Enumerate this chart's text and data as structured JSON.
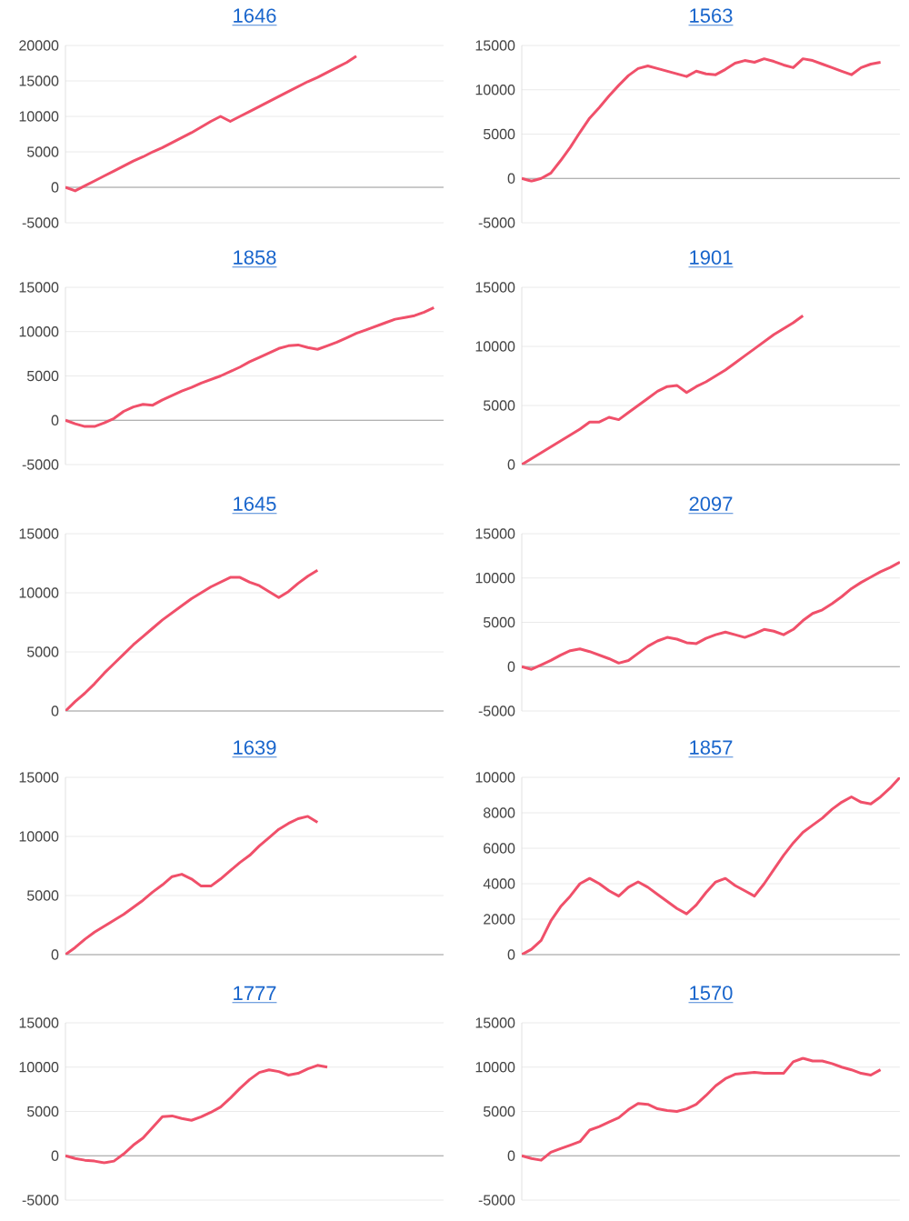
{
  "chart_data": [
    {
      "type": "line",
      "title": "1646",
      "categories": [
        null,
        null,
        null,
        null,
        null,
        null,
        null,
        null,
        null,
        null,
        null,
        null,
        null,
        null,
        null,
        null,
        null,
        null,
        null,
        null,
        null,
        null,
        null,
        null,
        null,
        null,
        null,
        null,
        null,
        null,
        null,
        null,
        null,
        null,
        null,
        null,
        null,
        null,
        null,
        null
      ],
      "grid": "y",
      "line_style": "solid",
      "ylim": [
        -5000,
        20000
      ],
      "yticks": [
        -5000,
        0,
        5000,
        10000,
        15000,
        20000
      ],
      "series": [
        {
          "color": "#f0506a",
          "values": [
            0,
            -500,
            200,
            900,
            1600,
            2300,
            3000,
            3700,
            4300,
            5000,
            5600,
            6300,
            7000,
            7700,
            8500,
            9300,
            10000,
            9300,
            10000,
            10700,
            11400,
            12100,
            12800,
            13500,
            14200,
            14900,
            15500,
            16200,
            16900,
            17600,
            18500,
            null,
            null,
            null,
            null,
            null,
            null,
            null,
            null,
            null
          ]
        }
      ]
    },
    {
      "type": "line",
      "title": "1563",
      "categories": [
        null,
        null,
        null,
        null,
        null,
        null,
        null,
        null,
        null,
        null,
        null,
        null,
        null,
        null,
        null,
        null,
        null,
        null,
        null,
        null,
        null,
        null,
        null,
        null,
        null,
        null,
        null,
        null,
        null,
        null,
        null,
        null,
        null,
        null,
        null,
        null,
        null,
        null,
        null,
        null
      ],
      "grid": "y",
      "line_style": "solid",
      "ylim": [
        -5000,
        15000
      ],
      "yticks": [
        -5000,
        0,
        5000,
        10000,
        15000
      ],
      "series": [
        {
          "color": "#f0506a",
          "values": [
            0,
            -300,
            0,
            600,
            2000,
            3500,
            5200,
            6800,
            8000,
            9300,
            10500,
            11600,
            12400,
            12700,
            12400,
            12100,
            11800,
            11500,
            12100,
            11800,
            11700,
            12300,
            13000,
            13300,
            13100,
            13500,
            13200,
            12800,
            12500,
            13500,
            13300,
            12900,
            12500,
            12100,
            11700,
            12500,
            12900,
            13100,
            null,
            null
          ]
        }
      ]
    },
    {
      "type": "line",
      "title": "1858",
      "categories": [
        null,
        null,
        null,
        null,
        null,
        null,
        null,
        null,
        null,
        null,
        null,
        null,
        null,
        null,
        null,
        null,
        null,
        null,
        null,
        null,
        null,
        null,
        null,
        null,
        null,
        null,
        null,
        null,
        null,
        null,
        null,
        null,
        null,
        null,
        null,
        null,
        null,
        null,
        null,
        null
      ],
      "grid": "y",
      "line_style": "solid",
      "ylim": [
        -5000,
        15000
      ],
      "yticks": [
        -5000,
        0,
        5000,
        10000,
        15000
      ],
      "series": [
        {
          "color": "#f0506a",
          "values": [
            0,
            -400,
            -700,
            -700,
            -300,
            200,
            1000,
            1500,
            1800,
            1700,
            2300,
            2800,
            3300,
            3700,
            4200,
            4600,
            5000,
            5500,
            6000,
            6600,
            7100,
            7600,
            8100,
            8400,
            8500,
            8200,
            8000,
            8400,
            8800,
            9300,
            9800,
            10200,
            10600,
            11000,
            11400,
            11600,
            11800,
            12200,
            12700,
            null
          ]
        }
      ]
    },
    {
      "type": "line",
      "title": "1901",
      "categories": [
        null,
        null,
        null,
        null,
        null,
        null,
        null,
        null,
        null,
        null,
        null,
        null,
        null,
        null,
        null,
        null,
        null,
        null,
        null,
        null,
        null,
        null,
        null,
        null,
        null,
        null,
        null,
        null,
        null,
        null,
        null,
        null,
        null,
        null,
        null,
        null,
        null,
        null,
        null,
        null
      ],
      "grid": "y",
      "line_style": "solid",
      "ylim": [
        0,
        15000
      ],
      "yticks": [
        0,
        5000,
        10000,
        15000
      ],
      "series": [
        {
          "color": "#f0506a",
          "values": [
            0,
            500,
            1000,
            1500,
            2000,
            2500,
            3000,
            3600,
            3600,
            4000,
            3800,
            4400,
            5000,
            5600,
            6200,
            6600,
            6700,
            6100,
            6600,
            7000,
            7500,
            8000,
            8600,
            9200,
            9800,
            10400,
            11000,
            11500,
            12000,
            12600,
            null,
            null,
            null,
            null,
            null,
            null,
            null,
            null,
            null,
            null
          ]
        }
      ]
    },
    {
      "type": "line",
      "title": "1645",
      "categories": [
        null,
        null,
        null,
        null,
        null,
        null,
        null,
        null,
        null,
        null,
        null,
        null,
        null,
        null,
        null,
        null,
        null,
        null,
        null,
        null,
        null,
        null,
        null,
        null,
        null,
        null,
        null,
        null,
        null,
        null,
        null,
        null,
        null,
        null,
        null,
        null,
        null,
        null,
        null,
        null
      ],
      "grid": "y",
      "line_style": "solid",
      "ylim": [
        0,
        15000
      ],
      "yticks": [
        0,
        5000,
        10000,
        15000
      ],
      "series": [
        {
          "color": "#f0506a",
          "values": [
            0,
            800,
            1500,
            2300,
            3200,
            4000,
            4800,
            5600,
            6300,
            7000,
            7700,
            8300,
            8900,
            9500,
            10000,
            10500,
            10900,
            11300,
            11300,
            10900,
            10600,
            10100,
            9600,
            10100,
            10800,
            11400,
            11900,
            null,
            null,
            null,
            null,
            null,
            null,
            null,
            null,
            null,
            null,
            null,
            null,
            null
          ]
        }
      ]
    },
    {
      "type": "line",
      "title": "2097",
      "categories": [
        null,
        null,
        null,
        null,
        null,
        null,
        null,
        null,
        null,
        null,
        null,
        null,
        null,
        null,
        null,
        null,
        null,
        null,
        null,
        null,
        null,
        null,
        null,
        null,
        null,
        null,
        null,
        null,
        null,
        null,
        null,
        null,
        null,
        null,
        null,
        null,
        null,
        null,
        null,
        null
      ],
      "grid": "y",
      "line_style": "solid",
      "ylim": [
        -5000,
        15000
      ],
      "yticks": [
        -5000,
        0,
        5000,
        10000,
        15000
      ],
      "series": [
        {
          "color": "#f0506a",
          "values": [
            0,
            -300,
            200,
            700,
            1300,
            1800,
            2000,
            1700,
            1300,
            900,
            400,
            700,
            1500,
            2300,
            2900,
            3300,
            3100,
            2700,
            2600,
            3200,
            3600,
            3900,
            3600,
            3300,
            3700,
            4200,
            4000,
            3600,
            4200,
            5200,
            6000,
            6400,
            7100,
            7900,
            8800,
            9500,
            10100,
            10700,
            11200,
            11800
          ]
        }
      ]
    },
    {
      "type": "line",
      "title": "1639",
      "categories": [
        null,
        null,
        null,
        null,
        null,
        null,
        null,
        null,
        null,
        null,
        null,
        null,
        null,
        null,
        null,
        null,
        null,
        null,
        null,
        null,
        null,
        null,
        null,
        null,
        null,
        null,
        null,
        null,
        null,
        null,
        null,
        null,
        null,
        null,
        null,
        null,
        null,
        null,
        null,
        null
      ],
      "grid": "y",
      "line_style": "solid",
      "ylim": [
        0,
        15000
      ],
      "yticks": [
        0,
        5000,
        10000,
        15000
      ],
      "series": [
        {
          "color": "#f0506a",
          "values": [
            0,
            600,
            1300,
            1900,
            2400,
            2900,
            3400,
            4000,
            4600,
            5300,
            5900,
            6600,
            6800,
            6400,
            5800,
            5800,
            6400,
            7100,
            7800,
            8400,
            9200,
            9900,
            10600,
            11100,
            11500,
            11700,
            11200,
            null,
            null,
            null,
            null,
            null,
            null,
            null,
            null,
            null,
            null,
            null,
            null,
            null
          ]
        }
      ]
    },
    {
      "type": "line",
      "title": "1857",
      "categories": [
        null,
        null,
        null,
        null,
        null,
        null,
        null,
        null,
        null,
        null,
        null,
        null,
        null,
        null,
        null,
        null,
        null,
        null,
        null,
        null,
        null,
        null,
        null,
        null,
        null,
        null,
        null,
        null,
        null,
        null,
        null,
        null,
        null,
        null,
        null,
        null,
        null,
        null,
        null,
        null
      ],
      "grid": "y",
      "line_style": "solid",
      "ylim": [
        0,
        10000
      ],
      "yticks": [
        0,
        2000,
        4000,
        6000,
        8000,
        10000
      ],
      "series": [
        {
          "color": "#f0506a",
          "values": [
            0,
            300,
            800,
            1900,
            2700,
            3300,
            4000,
            4300,
            4000,
            3600,
            3300,
            3800,
            4100,
            3800,
            3400,
            3000,
            2600,
            2300,
            2800,
            3500,
            4100,
            4300,
            3900,
            3600,
            3300,
            4000,
            4800,
            5600,
            6300,
            6900,
            7300,
            7700,
            8200,
            8600,
            8900,
            8600,
            8500,
            8900,
            9400,
            10000
          ]
        }
      ]
    },
    {
      "type": "line",
      "title": "1777",
      "categories": [
        null,
        null,
        null,
        null,
        null,
        null,
        null,
        null,
        null,
        null,
        null,
        null,
        null,
        null,
        null,
        null,
        null,
        null,
        null,
        null,
        null,
        null,
        null,
        null,
        null,
        null,
        null,
        null,
        null,
        null,
        null,
        null,
        null,
        null,
        null,
        null,
        null,
        null,
        null,
        null
      ],
      "grid": "y",
      "line_style": "solid",
      "ylim": [
        -5000,
        15000
      ],
      "yticks": [
        -5000,
        0,
        5000,
        10000,
        15000
      ],
      "series": [
        {
          "color": "#f0506a",
          "values": [
            0,
            -300,
            -500,
            -600,
            -800,
            -600,
            200,
            1200,
            2000,
            3200,
            4400,
            4500,
            4200,
            4000,
            4400,
            4900,
            5500,
            6500,
            7600,
            8600,
            9400,
            9700,
            9500,
            9100,
            9300,
            9800,
            10200,
            10000,
            null,
            null,
            null,
            null,
            null,
            null,
            null,
            null,
            null,
            null,
            null,
            null
          ]
        }
      ]
    },
    {
      "type": "line",
      "title": "1570",
      "categories": [
        null,
        null,
        null,
        null,
        null,
        null,
        null,
        null,
        null,
        null,
        null,
        null,
        null,
        null,
        null,
        null,
        null,
        null,
        null,
        null,
        null,
        null,
        null,
        null,
        null,
        null,
        null,
        null,
        null,
        null,
        null,
        null,
        null,
        null,
        null,
        null,
        null,
        null,
        null,
        null
      ],
      "grid": "y",
      "line_style": "solid",
      "ylim": [
        -5000,
        15000
      ],
      "yticks": [
        -5000,
        0,
        5000,
        10000,
        15000
      ],
      "series": [
        {
          "color": "#f0506a",
          "values": [
            0,
            -300,
            -500,
            400,
            800,
            1200,
            1600,
            2900,
            3300,
            3800,
            4300,
            5200,
            5900,
            5800,
            5300,
            5100,
            5000,
            5300,
            5800,
            6800,
            7900,
            8700,
            9200,
            9300,
            9400,
            9300,
            9300,
            9300,
            10600,
            11000,
            10700,
            10700,
            10400,
            10000,
            9700,
            9300,
            9100,
            9700,
            null,
            null
          ]
        }
      ]
    }
  ]
}
